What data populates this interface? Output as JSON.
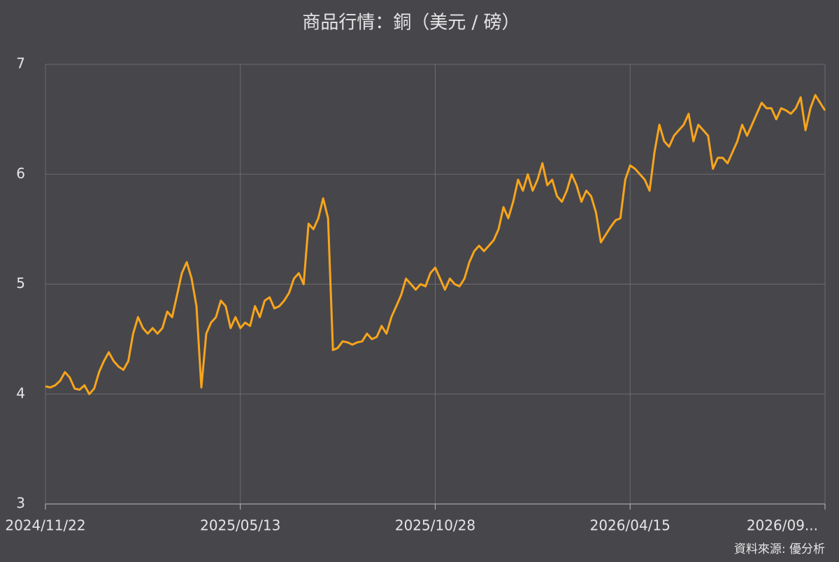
{
  "chart_data": {
    "type": "line",
    "title": "商品行情：銅（美元 / 磅）",
    "source": "資料來源: 優分析",
    "categories": [
      "2024/11/22",
      null,
      null,
      null,
      null,
      null,
      null,
      null,
      null,
      null,
      null,
      null,
      null,
      null,
      null,
      null,
      null,
      null,
      null,
      null,
      null,
      null,
      null,
      null,
      null,
      null,
      null,
      null,
      null,
      null,
      null,
      null,
      null,
      null,
      null,
      null,
      null,
      null,
      null,
      null,
      "2025/05/13",
      null,
      null,
      null,
      null,
      null,
      null,
      null,
      null,
      null,
      null,
      null,
      null,
      null,
      null,
      null,
      null,
      null,
      null,
      null,
      null,
      null,
      null,
      null,
      null,
      null,
      null,
      null,
      null,
      null,
      null,
      null,
      null,
      null,
      null,
      null,
      null,
      null,
      null,
      null,
      "2025/10/28",
      null,
      null,
      null,
      null,
      null,
      null,
      null,
      null,
      null,
      null,
      null,
      null,
      null,
      null,
      null,
      null,
      null,
      null,
      null,
      null,
      null,
      null,
      null,
      null,
      null,
      null,
      null,
      null,
      null,
      null,
      null,
      null,
      null,
      null,
      null,
      null,
      null,
      null,
      null,
      "2026/04/15",
      null,
      null,
      null,
      null,
      null,
      null,
      null,
      null,
      null,
      null,
      null,
      null,
      null,
      null,
      null,
      null,
      null,
      null,
      null,
      null,
      null,
      null,
      null,
      null,
      null,
      null,
      null,
      null,
      null,
      null,
      null,
      null,
      null,
      null,
      null,
      null,
      null,
      null,
      null,
      "2026/09..."
    ],
    "values": [
      4.07,
      4.06,
      4.08,
      4.12,
      4.2,
      4.15,
      4.05,
      4.04,
      4.08,
      4.0,
      4.05,
      4.2,
      4.3,
      4.38,
      4.3,
      4.25,
      4.22,
      4.3,
      4.55,
      4.7,
      4.6,
      4.55,
      4.6,
      4.55,
      4.6,
      4.75,
      4.7,
      4.9,
      5.1,
      5.2,
      5.05,
      4.8,
      4.06,
      4.55,
      4.65,
      4.7,
      4.85,
      4.8,
      4.6,
      4.7,
      4.6,
      4.65,
      4.62,
      4.8,
      4.7,
      4.85,
      4.88,
      4.78,
      4.8,
      4.85,
      4.92,
      5.05,
      5.1,
      5.0,
      5.55,
      5.5,
      5.6,
      5.78,
      5.6,
      4.4,
      4.42,
      4.48,
      4.47,
      4.45,
      4.47,
      4.48,
      4.55,
      4.5,
      4.52,
      4.62,
      4.55,
      4.7,
      4.8,
      4.9,
      5.05,
      5.0,
      4.95,
      5.0,
      4.98,
      5.1,
      5.15,
      5.05,
      4.95,
      5.05,
      5.0,
      4.98,
      5.05,
      5.2,
      5.3,
      5.35,
      5.3,
      5.35,
      5.4,
      5.5,
      5.7,
      5.6,
      5.75,
      5.95,
      5.85,
      6.0,
      5.85,
      5.95,
      6.1,
      5.9,
      5.95,
      5.8,
      5.75,
      5.85,
      6.0,
      5.9,
      5.75,
      5.85,
      5.8,
      5.65,
      5.38,
      5.45,
      5.52,
      5.58,
      5.6,
      5.95,
      6.08,
      6.05,
      6.0,
      5.95,
      5.85,
      6.2,
      6.45,
      6.3,
      6.25,
      6.35,
      6.4,
      6.45,
      6.55,
      6.3,
      6.45,
      6.4,
      6.35,
      6.05,
      6.15,
      6.15,
      6.1,
      6.2,
      6.3,
      6.45,
      6.35,
      6.45,
      6.55,
      6.65,
      6.6,
      6.6,
      6.5,
      6.6,
      6.58,
      6.55,
      6.6,
      6.7,
      6.4,
      6.6,
      6.72,
      6.65,
      6.58
    ],
    "color": "#f7a51c",
    "ylim": [
      3,
      7
    ],
    "yticks": [
      3,
      4,
      5,
      6,
      7
    ],
    "grid": true
  }
}
